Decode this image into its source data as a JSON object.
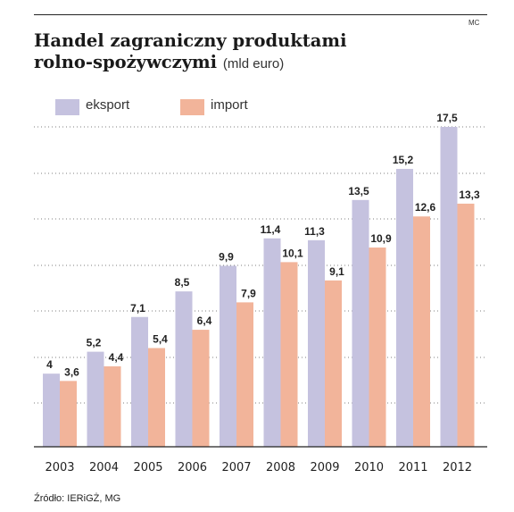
{
  "header": {
    "credit": "MC",
    "title_line1": "Handel zagraniczny produktami",
    "title_line2": "rolno-spożywczymi",
    "title_unit": "(mld euro)"
  },
  "legend": {
    "eksport": "eksport",
    "import": "import"
  },
  "colors": {
    "eksport": "#c5c2df",
    "import": "#f2b49a"
  },
  "source": "Źródło: IERiGŻ, MG",
  "chart_data": {
    "type": "bar",
    "title": "Handel zagraniczny produktami rolno-spożywczymi (mld euro)",
    "xlabel": "",
    "ylabel": "",
    "ylim": [
      0,
      17.5
    ],
    "grid": true,
    "legend_position": "top-left",
    "categories": [
      "2003",
      "2004",
      "2005",
      "2006",
      "2007",
      "2008",
      "2009",
      "2010",
      "2011",
      "2012"
    ],
    "series": [
      {
        "name": "eksport",
        "values": [
          4,
          5.2,
          7.1,
          8.5,
          9.9,
          11.4,
          11.3,
          13.5,
          15.2,
          17.5
        ],
        "labels": [
          "4",
          "5,2",
          "7,1",
          "8,5",
          "9,9",
          "11,4",
          "11,3",
          "13,5",
          "15,2",
          "17,5"
        ]
      },
      {
        "name": "import",
        "values": [
          3.6,
          4.4,
          5.4,
          6.4,
          7.9,
          10.1,
          9.1,
          10.9,
          12.6,
          13.3
        ],
        "labels": [
          "3,6",
          "4,4",
          "5,4",
          "6,4",
          "7,9",
          "10,1",
          "9,1",
          "10,9",
          "12,6",
          "13,3"
        ]
      }
    ]
  }
}
